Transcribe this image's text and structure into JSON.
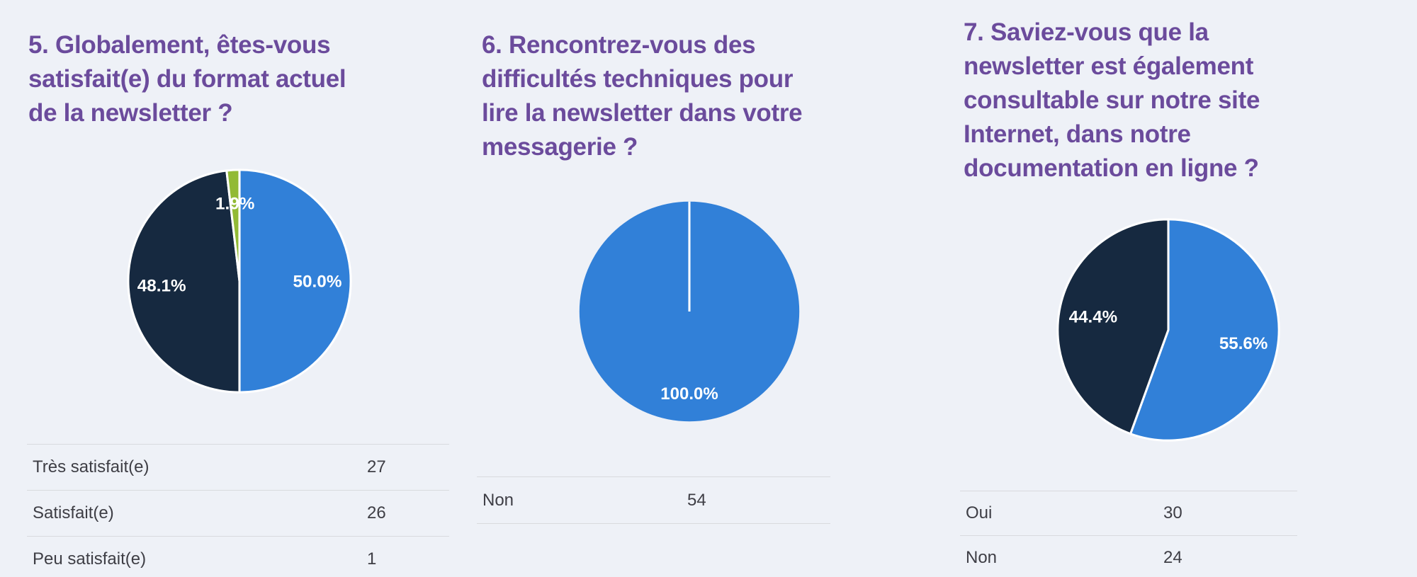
{
  "page": {
    "background": "#eef1f7"
  },
  "theme": {
    "heading_color": "#6b4b9c",
    "table_text_color": "#3e3e45",
    "divider_color": "#d8dade",
    "pie_label_color": "#ffffff",
    "pie_blue": "#3180d8",
    "pie_navy": "#162940",
    "pie_green": "#92ba35"
  },
  "columns": [
    {
      "title": "5. Globalement, êtes-vous satisfait(e) du format actuel de la newsletter ?",
      "title_lines": [
        "5. Globalement, êtes-vous",
        "satisfait(e) du format actuel",
        "de la newsletter ?"
      ],
      "rows": [
        {
          "label": "Très satisfait(e)",
          "value": "27"
        },
        {
          "label": "Satisfait(e)",
          "value": "26"
        },
        {
          "label": "Peu satisfait(e)",
          "value": "1"
        }
      ]
    },
    {
      "title": "6. Rencontrez-vous des difficultés techniques pour lire la newsletter dans votre messagerie ?",
      "title_lines": [
        "6. Rencontrez-vous des",
        "difficultés techniques pour",
        "lire la newsletter dans votre",
        "messagerie ?"
      ],
      "rows": [
        {
          "label": "Non",
          "value": "54"
        }
      ]
    },
    {
      "title": "7. Saviez-vous que la newsletter est également consultable sur notre site Internet, dans notre documentation en ligne ?",
      "title_lines": [
        "7. Saviez-vous que la",
        "newsletter est également",
        "consultable sur notre site",
        "Internet, dans notre",
        "documentation en ligne ?"
      ],
      "rows": [
        {
          "label": "Oui",
          "value": "30"
        },
        {
          "label": "Non",
          "value": "24"
        }
      ]
    }
  ],
  "chart_data": [
    {
      "type": "pie",
      "title": "5. Globalement, êtes-vous satisfait(e) du format actuel de la newsletter ?",
      "categories": [
        "Très satisfait(e)",
        "Satisfait(e)",
        "Peu satisfait(e)"
      ],
      "values": [
        27,
        26,
        1
      ],
      "percent_labels": [
        "50.0%",
        "48.1%",
        "1.9%"
      ],
      "colors": [
        "#3180d8",
        "#162940",
        "#92ba35"
      ],
      "start_angle_deg": 0,
      "direction": "clockwise",
      "label_radius": 0.7,
      "legend": "none"
    },
    {
      "type": "pie",
      "title": "6. Rencontrez-vous des difficultés techniques pour lire la newsletter dans votre messagerie ?",
      "categories": [
        "Non"
      ],
      "values": [
        54
      ],
      "percent_labels": [
        "100.0%"
      ],
      "colors": [
        "#3180d8"
      ],
      "start_angle_deg": 0,
      "direction": "clockwise",
      "label_radius": 0.745,
      "legend": "none"
    },
    {
      "type": "pie",
      "title": "7. Saviez-vous que la newsletter est également consultable sur notre site Internet, dans notre documentation en ligne ?",
      "categories": [
        "Oui",
        "Non"
      ],
      "values": [
        30,
        24
      ],
      "percent_labels": [
        "55.6%",
        "44.4%"
      ],
      "colors": [
        "#3180d8",
        "#162940"
      ],
      "start_angle_deg": 0,
      "direction": "clockwise",
      "label_radius": 0.69,
      "legend": "none"
    }
  ]
}
